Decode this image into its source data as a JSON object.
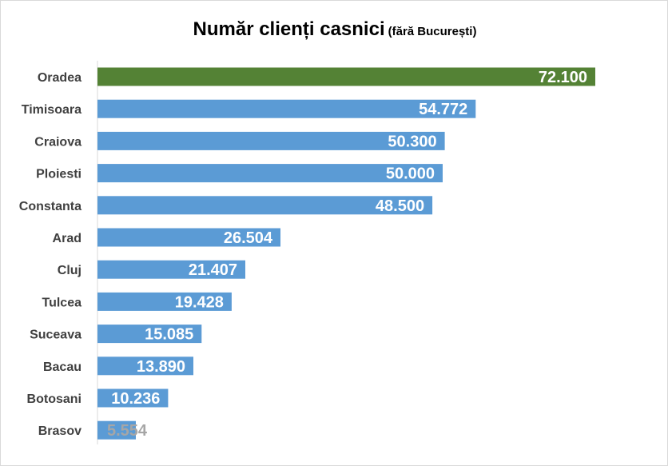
{
  "chart_data": {
    "type": "bar",
    "orientation": "horizontal",
    "title": "Număr clienți casnici",
    "subtitle": "(fără București)",
    "categories": [
      "Oradea",
      "Timisoara",
      "Craiova",
      "Ploiesti",
      "Constanta",
      "Arad",
      "Cluj",
      "Tulcea",
      "Suceava",
      "Bacau",
      "Botosani",
      "Brasov"
    ],
    "values": [
      72100,
      54772,
      50300,
      50000,
      48500,
      26504,
      21407,
      19428,
      15085,
      13890,
      10236,
      5554
    ],
    "value_labels": [
      "72.100",
      "54.772",
      "50.300",
      "50.000",
      "48.500",
      "26.504",
      "21.407",
      "19.428",
      "15.085",
      "13.890",
      "10.236",
      "5.554"
    ],
    "xlim": [
      0,
      72100
    ],
    "grid": false,
    "legend": "none",
    "colors": {
      "highlight_bar": "#548235",
      "bar": "#5b9bd5",
      "axis": "#d9d9d9",
      "label_on_bar": "#ffffff",
      "label_outside_bar": "#a6a6a6"
    }
  }
}
